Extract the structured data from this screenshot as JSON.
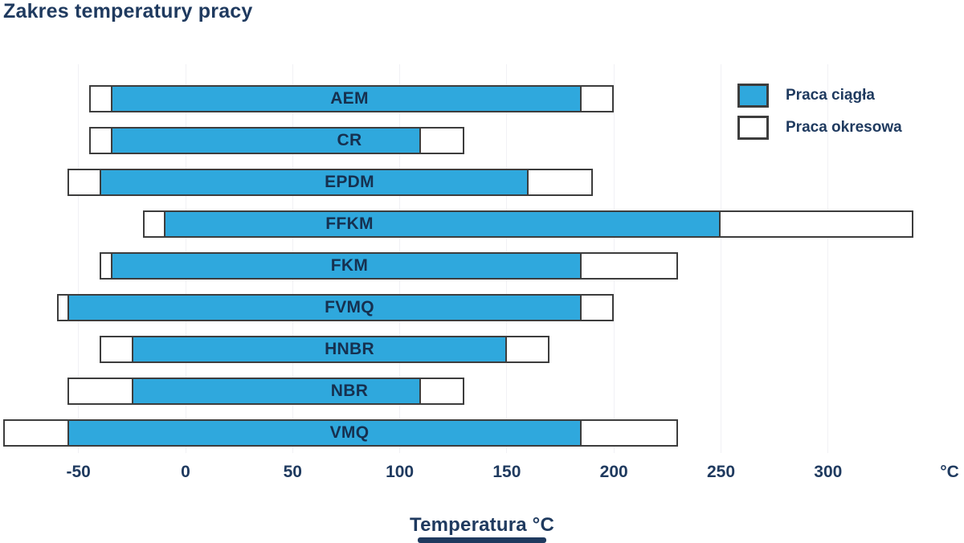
{
  "title": "Zakres temperatury pracy",
  "legend": {
    "continuous_label": "Praca ciągła",
    "intermittent_label": "Praca okresowa"
  },
  "axis": {
    "ticks": [
      -50,
      0,
      50,
      100,
      150,
      200,
      250,
      300
    ],
    "unit_label": "°C",
    "xlabel": "Temperatura °C"
  },
  "colors": {
    "continuous_fill": "#2fa8dd",
    "intermittent_fill": "#ffffff",
    "bar_border": "#3d3d3d",
    "text": "#1f3a5f",
    "gridline": "#f1f1f5",
    "background": "#ffffff"
  },
  "chart_data": {
    "type": "bar",
    "orientation": "horizontal",
    "title": "Zakres temperatury pracy",
    "xlabel": "Temperatura °C",
    "xlim": [
      -90,
      345
    ],
    "grid": "faint vertical at ticks",
    "legend_position": "top-right",
    "legend_entries": [
      "Praca ciągła",
      "Praca okresowa"
    ],
    "series_note": "each material: intermittent = [min,max] °C (white outline bar), continuous = [min,max] °C (blue bar nested inside)",
    "materials": [
      {
        "name": "AEM",
        "intermittent": [
          -45,
          200
        ],
        "continuous": [
          -35,
          185
        ]
      },
      {
        "name": "CR",
        "intermittent": [
          -45,
          130
        ],
        "continuous": [
          -35,
          110
        ]
      },
      {
        "name": "EPDM",
        "intermittent": [
          -55,
          190
        ],
        "continuous": [
          -40,
          160
        ]
      },
      {
        "name": "FFKM",
        "intermittent": [
          -20,
          340
        ],
        "continuous": [
          -10,
          250
        ]
      },
      {
        "name": "FKM",
        "intermittent": [
          -40,
          230
        ],
        "continuous": [
          -35,
          185
        ]
      },
      {
        "name": "FVMQ",
        "intermittent": [
          -60,
          200
        ],
        "continuous": [
          -55,
          185
        ]
      },
      {
        "name": "HNBR",
        "intermittent": [
          -40,
          170
        ],
        "continuous": [
          -25,
          150
        ]
      },
      {
        "name": "NBR",
        "intermittent": [
          -55,
          130
        ],
        "continuous": [
          -25,
          110
        ]
      },
      {
        "name": "VMQ",
        "intermittent": [
          -85,
          230
        ],
        "continuous": [
          -55,
          185
        ]
      }
    ]
  }
}
